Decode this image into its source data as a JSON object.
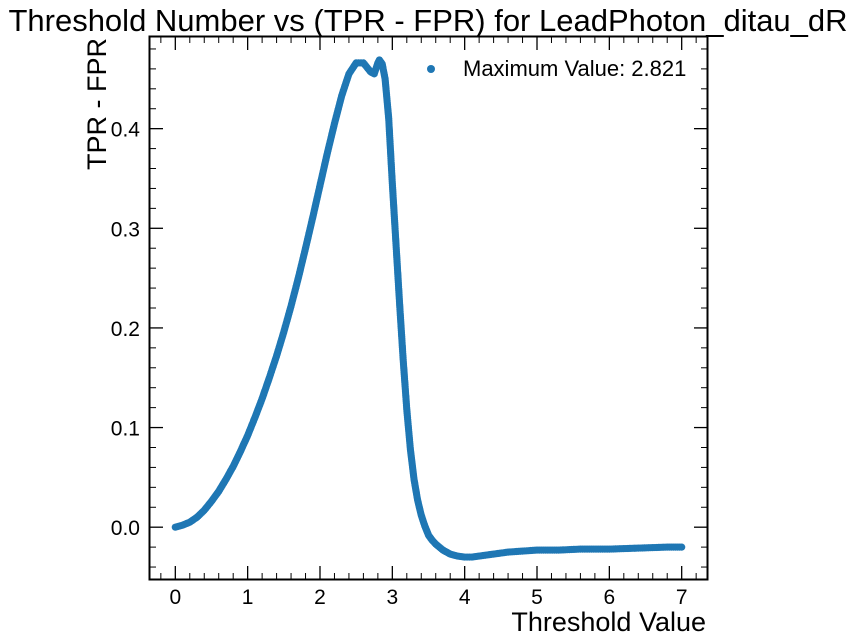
{
  "chart_data": {
    "type": "scatter",
    "title": "Threshold Number vs (TPR - FPR) for LeadPhoton_ditau_dR",
    "xlabel": "Threshold Value",
    "ylabel": "TPR - FPR",
    "xlim": [
      -0.35,
      7.35
    ],
    "ylim": [
      -0.052,
      0.492
    ],
    "x_ticks": [
      0,
      1,
      2,
      3,
      4,
      5,
      6,
      7
    ],
    "y_ticks": [
      0.0,
      0.1,
      0.2,
      0.3,
      0.4
    ],
    "y_tick_labels": [
      "0.0",
      "0.1",
      "0.2",
      "0.3",
      "0.4"
    ],
    "grid": false,
    "legend": {
      "placement": "top-right",
      "entries": [
        "Maximum Value: 2.821"
      ]
    },
    "series": [
      {
        "name": "Maximum Value: 2.821",
        "color": "#1f77b4",
        "x": [
          0.0,
          0.1,
          0.2,
          0.3,
          0.4,
          0.5,
          0.6,
          0.7,
          0.8,
          0.9,
          1.0,
          1.1,
          1.2,
          1.3,
          1.4,
          1.5,
          1.6,
          1.7,
          1.8,
          1.9,
          2.0,
          2.1,
          2.2,
          2.3,
          2.4,
          2.5,
          2.6,
          2.7,
          2.75,
          2.8,
          2.821,
          2.86,
          2.9,
          2.95,
          3.0,
          3.05,
          3.1,
          3.15,
          3.2,
          3.25,
          3.3,
          3.35,
          3.4,
          3.45,
          3.5,
          3.55,
          3.6,
          3.65,
          3.7,
          3.75,
          3.8,
          3.9,
          4.0,
          4.1,
          4.2,
          4.4,
          4.6,
          4.8,
          5.0,
          5.3,
          5.6,
          6.0,
          6.4,
          6.8,
          7.0
        ],
        "y": [
          0.0,
          0.002,
          0.005,
          0.01,
          0.017,
          0.026,
          0.036,
          0.048,
          0.061,
          0.076,
          0.092,
          0.11,
          0.129,
          0.15,
          0.172,
          0.196,
          0.222,
          0.25,
          0.28,
          0.311,
          0.343,
          0.375,
          0.405,
          0.433,
          0.455,
          0.466,
          0.466,
          0.457,
          0.455,
          0.466,
          0.469,
          0.465,
          0.45,
          0.41,
          0.345,
          0.285,
          0.225,
          0.168,
          0.118,
          0.078,
          0.048,
          0.027,
          0.012,
          0.001,
          -0.008,
          -0.013,
          -0.017,
          -0.02,
          -0.023,
          -0.025,
          -0.027,
          -0.029,
          -0.03,
          -0.03,
          -0.029,
          -0.027,
          -0.025,
          -0.024,
          -0.023,
          -0.023,
          -0.022,
          -0.022,
          -0.021,
          -0.02,
          -0.02
        ]
      }
    ]
  }
}
